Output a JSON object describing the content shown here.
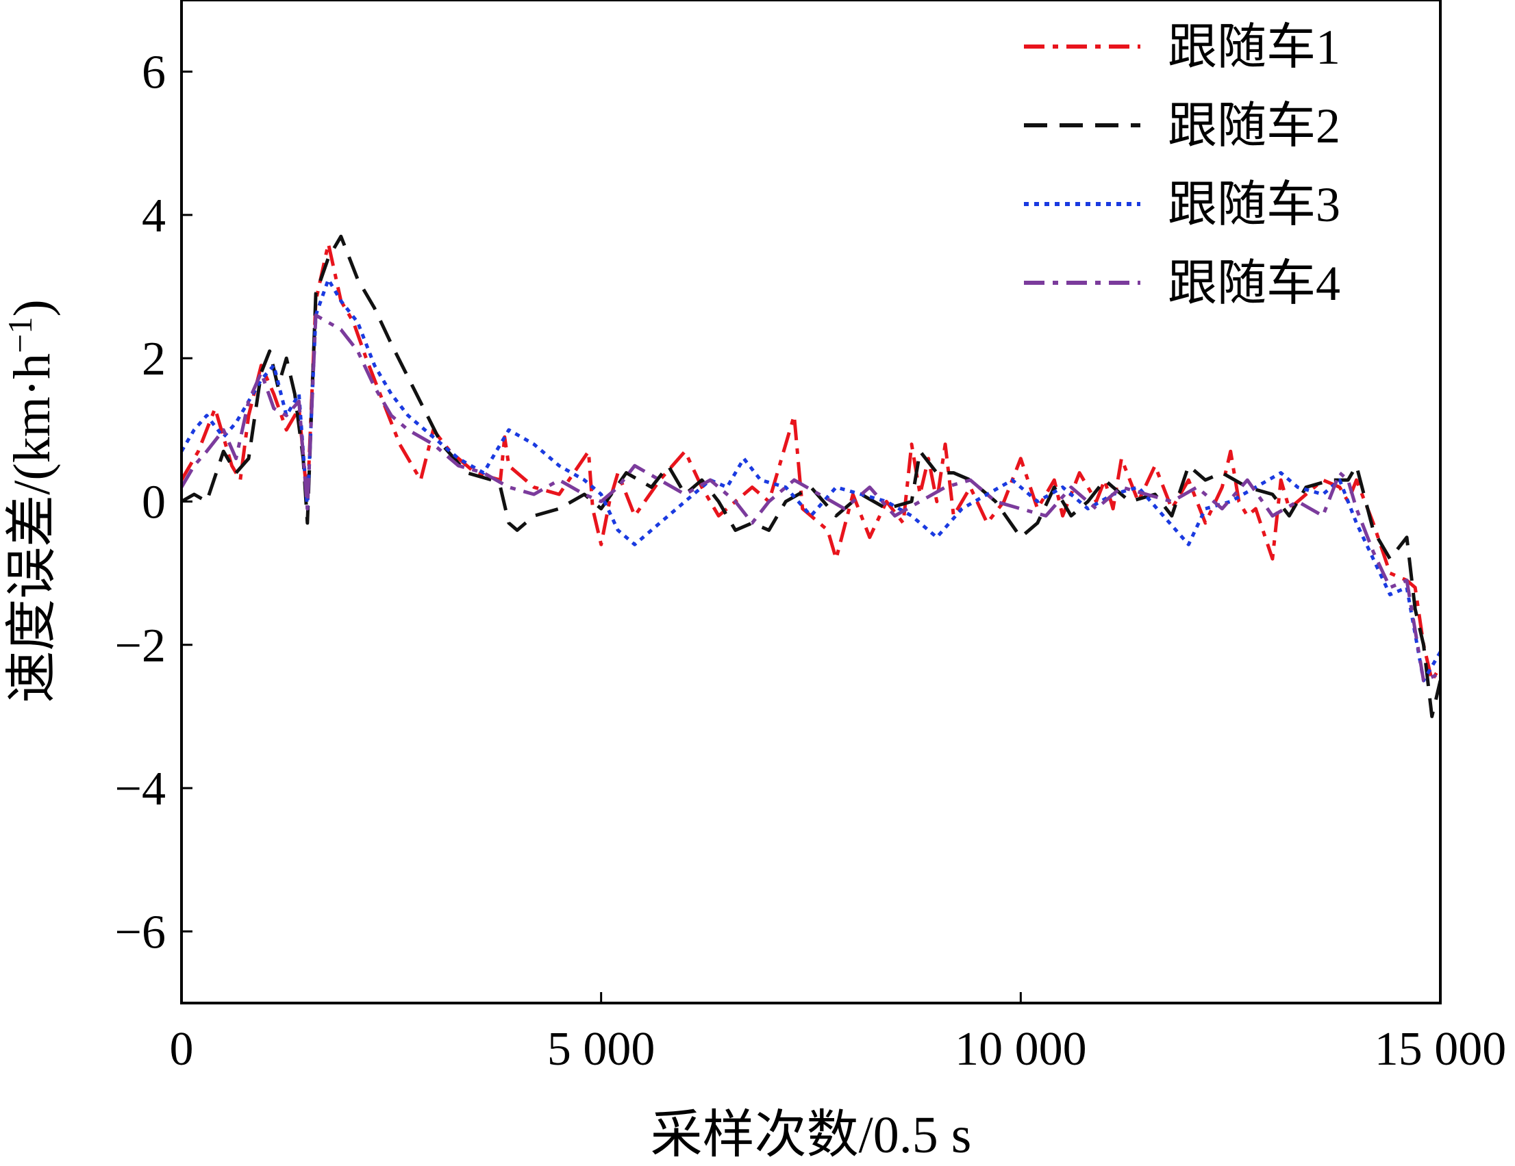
{
  "chart_data": {
    "type": "line",
    "title": "",
    "xlabel": "采样次数/0.5 s",
    "ylabel_main": "速度误差/(km·h",
    "ylabel_sup": "−1",
    "ylabel_tail": ")",
    "xlim": [
      0,
      15000
    ],
    "ylim": [
      -7,
      7
    ],
    "xticks": [
      0,
      5000,
      10000,
      15000
    ],
    "xtick_labels": [
      "0",
      "5 000",
      "10 000",
      "15 000"
    ],
    "yticks": [
      -6,
      -4,
      -2,
      0,
      2,
      4,
      6
    ],
    "ytick_labels": [
      "−6",
      "−4",
      "−2",
      "0",
      "2",
      "4",
      "6"
    ],
    "grid": false,
    "legend_position": "top-right",
    "series": [
      {
        "name": "跟随车1",
        "color": "#e8141c",
        "style": "dashdot",
        "x": [
          0,
          200,
          400,
          600,
          700,
          800,
          950,
          1100,
          1250,
          1400,
          1500,
          1600,
          1750,
          1900,
          2050,
          2200,
          2400,
          2600,
          2750,
          2850,
          3000,
          3200,
          3500,
          3800,
          3850,
          3900,
          4200,
          4500,
          4850,
          4900,
          5000,
          5100,
          5200,
          5400,
          5700,
          6000,
          6200,
          6400,
          6600,
          6800,
          7000,
          7300,
          7400,
          7500,
          7700,
          7800,
          8000,
          8200,
          8400,
          8600,
          8700,
          8800,
          8900,
          9000,
          9100,
          9200,
          9400,
          9600,
          9800,
          10000,
          10200,
          10400,
          10500,
          10700,
          10900,
          11000,
          11100,
          11200,
          11400,
          11600,
          11800,
          12000,
          12200,
          12400,
          12500,
          12600,
          12700,
          12800,
          13000,
          13100,
          13200,
          13400,
          13600,
          13800,
          13900,
          14000,
          14200,
          14400,
          14600,
          14700,
          14800,
          14900,
          15000
        ],
        "y": [
          0.3,
          0.7,
          1.3,
          0.5,
          0.3,
          1.2,
          1.9,
          1.5,
          1.0,
          1.3,
          0,
          2.8,
          3.6,
          2.8,
          2.5,
          2.0,
          1.4,
          0.8,
          0.5,
          0.3,
          1.0,
          0.7,
          0.4,
          0.3,
          0.9,
          0.5,
          0.2,
          0.1,
          0.7,
          -0.1,
          -0.6,
          0.0,
          0.4,
          -0.2,
          0.3,
          0.7,
          0.2,
          -0.2,
          0.0,
          0.2,
          0.0,
          1.2,
          -0.1,
          -0.2,
          -0.4,
          -0.8,
          0.1,
          -0.5,
          0.0,
          -0.3,
          0.8,
          0.1,
          0.6,
          0.0,
          0.8,
          -0.2,
          0.2,
          -0.3,
          0.0,
          0.6,
          -0.1,
          0.3,
          -0.2,
          0.4,
          0.0,
          0.3,
          -0.1,
          0.6,
          0.0,
          0.5,
          -0.1,
          0.3,
          -0.3,
          0.2,
          0.7,
          0.0,
          -0.2,
          -0.1,
          -0.8,
          0.3,
          -0.1,
          0.1,
          0.3,
          0.2,
          0.0,
          0.3,
          -0.3,
          -1.0,
          -1.1,
          -1.2,
          -2.0,
          -2.5,
          -2.3
        ]
      },
      {
        "name": "跟随车2",
        "color": "#111111",
        "style": "dashed",
        "x": [
          0,
          150,
          300,
          500,
          650,
          800,
          950,
          1050,
          1150,
          1250,
          1350,
          1450,
          1500,
          1600,
          1750,
          1900,
          2000,
          2100,
          2300,
          2500,
          2800,
          3100,
          3400,
          3700,
          3800,
          3900,
          4000,
          4200,
          4500,
          4800,
          5000,
          5300,
          5600,
          5800,
          6000,
          6200,
          6400,
          6600,
          6800,
          7000,
          7200,
          7500,
          7800,
          8100,
          8400,
          8700,
          8800,
          9000,
          9200,
          9400,
          9700,
          10000,
          10200,
          10400,
          10600,
          10800,
          11000,
          11300,
          11600,
          11800,
          12000,
          12200,
          12400,
          12700,
          13000,
          13200,
          13400,
          13700,
          13900,
          14000,
          14200,
          14400,
          14600,
          14700,
          14800,
          14900,
          15000
        ],
        "y": [
          0,
          0.1,
          0.0,
          0.7,
          0.4,
          0.6,
          1.8,
          2.1,
          1.6,
          2.0,
          1.5,
          0.6,
          -0.3,
          2.9,
          3.4,
          3.7,
          3.4,
          3.1,
          2.7,
          2.2,
          1.5,
          0.8,
          0.4,
          0.3,
          0.2,
          -0.3,
          -0.4,
          -0.2,
          -0.1,
          0.1,
          -0.1,
          0.4,
          0.2,
          0.5,
          0.1,
          0.3,
          0.0,
          -0.4,
          -0.3,
          -0.4,
          0.0,
          0.2,
          -0.2,
          0.1,
          -0.1,
          0.0,
          0.7,
          0.4,
          0.4,
          0.3,
          0.0,
          -0.5,
          -0.3,
          0.2,
          -0.2,
          0.0,
          0.3,
          0.0,
          0.1,
          -0.2,
          0.5,
          0.3,
          0.4,
          0.2,
          0.1,
          -0.2,
          0.2,
          0.3,
          0.3,
          0.5,
          -0.4,
          -0.8,
          -0.5,
          -1.5,
          -2.0,
          -3.0,
          -2.5
        ]
      },
      {
        "name": "跟随车3",
        "color": "#1a3ae0",
        "style": "dotted",
        "x": [
          0,
          150,
          300,
          500,
          650,
          800,
          950,
          1100,
          1250,
          1400,
          1500,
          1600,
          1750,
          1900,
          2100,
          2300,
          2500,
          2700,
          3000,
          3300,
          3600,
          3900,
          4200,
          4500,
          4800,
          5000,
          5200,
          5400,
          5700,
          6000,
          6300,
          6500,
          6700,
          6900,
          7200,
          7500,
          7800,
          8100,
          8400,
          8700,
          9000,
          9300,
          9600,
          9900,
          10200,
          10500,
          10800,
          11100,
          11400,
          11700,
          12000,
          12200,
          12500,
          12800,
          13100,
          13300,
          13600,
          13800,
          14000,
          14200,
          14400,
          14600,
          14800,
          15000
        ],
        "y": [
          0.7,
          1.0,
          1.2,
          0.9,
          1.1,
          1.4,
          1.7,
          1.9,
          1.2,
          1.5,
          -0.1,
          2.6,
          3.1,
          2.8,
          2.5,
          1.9,
          1.5,
          1.2,
          0.9,
          0.6,
          0.4,
          1.0,
          0.8,
          0.5,
          0.3,
          0.1,
          -0.4,
          -0.6,
          -0.3,
          0.0,
          0.3,
          0.2,
          0.6,
          0.3,
          0.2,
          -0.2,
          0.2,
          0.1,
          0.0,
          -0.2,
          -0.5,
          -0.1,
          0.1,
          0.3,
          0.0,
          0.2,
          -0.1,
          0.1,
          0.2,
          -0.2,
          -0.6,
          -0.1,
          0.0,
          0.2,
          0.4,
          0.2,
          0.1,
          0.3,
          -0.3,
          -0.8,
          -1.3,
          -1.2,
          -2.5,
          -2.1
        ]
      },
      {
        "name": "跟随车4",
        "color": "#7b3b9c",
        "style": "dashdot",
        "x": [
          0,
          150,
          300,
          500,
          650,
          800,
          950,
          1100,
          1250,
          1400,
          1500,
          1600,
          1750,
          1900,
          2100,
          2300,
          2500,
          2700,
          3000,
          3300,
          3600,
          3900,
          4200,
          4500,
          4800,
          5000,
          5200,
          5400,
          5700,
          6000,
          6300,
          6600,
          6800,
          7000,
          7300,
          7600,
          7900,
          8200,
          8500,
          8800,
          9100,
          9400,
          9700,
          10000,
          10300,
          10600,
          10900,
          11200,
          11500,
          11800,
          12100,
          12400,
          12700,
          13000,
          13300,
          13600,
          13800,
          13900,
          14000,
          14200,
          14400,
          14600,
          14800,
          15000
        ],
        "y": [
          0.2,
          0.5,
          0.7,
          1.0,
          0.6,
          1.4,
          1.8,
          1.3,
          1.2,
          1.4,
          -0.1,
          2.6,
          2.5,
          2.4,
          2.1,
          1.6,
          1.2,
          1.0,
          0.8,
          0.5,
          0.4,
          0.2,
          0.1,
          0.3,
          0.1,
          0.0,
          0.2,
          0.5,
          0.3,
          0.1,
          0.3,
          0.0,
          -0.3,
          0.0,
          0.3,
          0.1,
          -0.1,
          0.2,
          -0.2,
          0.0,
          0.2,
          0.3,
          0.0,
          -0.1,
          -0.2,
          0.2,
          -0.1,
          0.2,
          0.1,
          0.0,
          0.2,
          -0.1,
          0.3,
          -0.2,
          0.0,
          -0.2,
          0.4,
          0.3,
          -0.1,
          -0.7,
          -1.2,
          -1.1,
          -2.5,
          -2.4
        ]
      }
    ]
  }
}
